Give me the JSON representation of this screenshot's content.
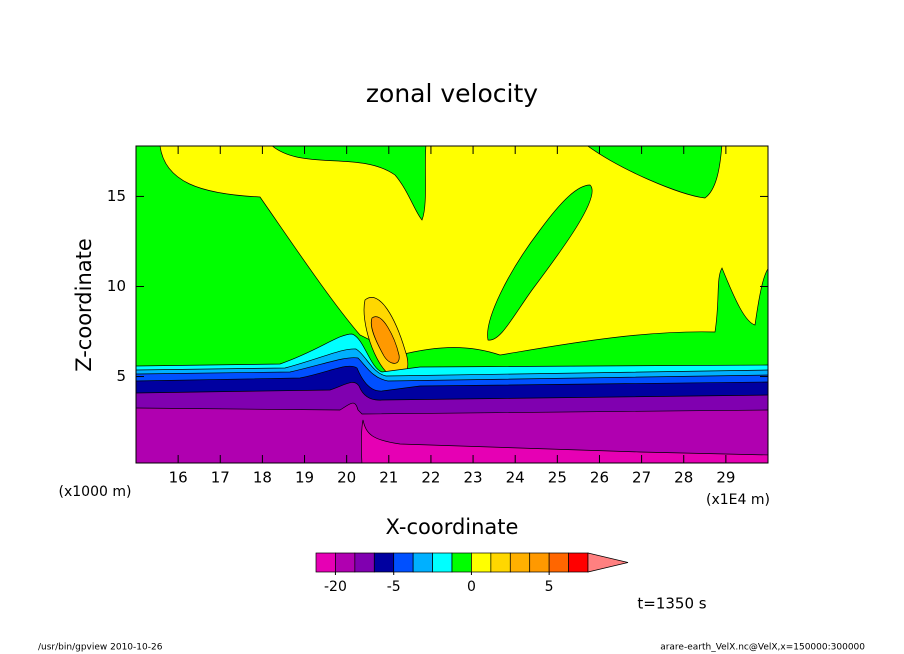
{
  "chart_data": {
    "type": "contour",
    "title": "zonal velocity",
    "x_label": "X-coordinate",
    "y_label": "Z-coordinate",
    "x_unit_note": "(x1E4 m)",
    "y_unit_note": "(x1000 m)",
    "xlim": [
      15,
      30
    ],
    "xticks": [
      16,
      17,
      18,
      19,
      20,
      21,
      22,
      23,
      24,
      25,
      26,
      27,
      28,
      29
    ],
    "ylim": [
      0.2,
      17.8
    ],
    "yticks": [
      5,
      10,
      15
    ],
    "colorbar": {
      "levels": [
        -25,
        -20,
        -15,
        -10,
        -5,
        -3,
        -2,
        -1,
        0,
        1,
        2,
        3,
        5,
        10,
        15
      ],
      "colors": [
        "#e600b4",
        "#b000b0",
        "#8000b0",
        "#0000a0",
        "#0050ff",
        "#00b0ff",
        "#00ffff",
        "#00ff00",
        "#ffff00",
        "#ffd700",
        "#ffb000",
        "#ff9900",
        "#ff6600",
        "#ff0000"
      ],
      "over_color": "#ff8080",
      "ticks": [
        -20,
        -5,
        0,
        5
      ]
    },
    "annotation": "t=1350 s",
    "footer_left": "/usr/bin/gpview  2010-10-26",
    "footer_right": "arare-earth_VelX.nc@VelX,x=150000:300000"
  }
}
